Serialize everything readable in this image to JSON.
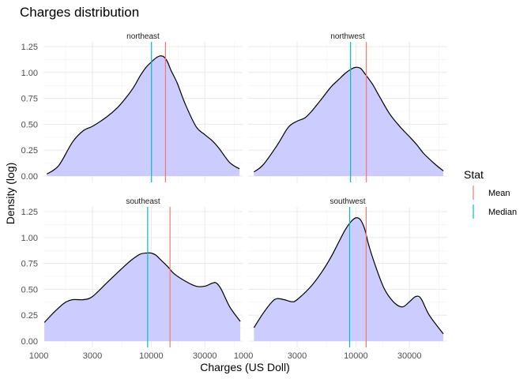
{
  "chart_data": {
    "type": "area",
    "title": "Charges distribution",
    "xlabel": "Charges (US Doll)",
    "ylabel": "Density (log)",
    "x_scale": "log10",
    "xlim": [
      1100,
      65000
    ],
    "ylim": [
      0,
      1.25
    ],
    "x_ticks": [
      1000,
      3000,
      10000,
      30000
    ],
    "x_tick_labels": [
      "1000",
      "3000",
      "10000",
      "30000"
    ],
    "y_ticks": [
      0,
      0.25,
      0.5,
      0.75,
      1.0,
      1.25
    ],
    "y_tick_labels": [
      "0.00",
      "0.25",
      "0.50",
      "0.75",
      "1.00",
      "1.25"
    ],
    "grid": true,
    "fill_color": "#ccccff",
    "line_color": "#000000",
    "legend": {
      "title": "Stat",
      "position": "right",
      "entries": [
        {
          "label": "Mean",
          "color": "#f8766d"
        },
        {
          "label": "Median",
          "color": "#00bfc4"
        }
      ]
    },
    "facets": [
      {
        "name": "northeast",
        "mean": 13400,
        "median": 10060,
        "density": [
          [
            1180,
            0.02
          ],
          [
            1500,
            0.1
          ],
          [
            2000,
            0.33
          ],
          [
            2500,
            0.44
          ],
          [
            3000,
            0.48
          ],
          [
            4000,
            0.57
          ],
          [
            5000,
            0.66
          ],
          [
            6000,
            0.76
          ],
          [
            7000,
            0.86
          ],
          [
            8000,
            0.97
          ],
          [
            9000,
            1.05
          ],
          [
            10000,
            1.1
          ],
          [
            11000,
            1.14
          ],
          [
            12000,
            1.16
          ],
          [
            13000,
            1.15
          ],
          [
            14000,
            1.1
          ],
          [
            15000,
            1.02
          ],
          [
            17000,
            0.9
          ],
          [
            20000,
            0.7
          ],
          [
            25000,
            0.48
          ],
          [
            30000,
            0.4
          ],
          [
            35000,
            0.34
          ],
          [
            40000,
            0.27
          ],
          [
            50000,
            0.13
          ],
          [
            61000,
            0.07
          ]
        ]
      },
      {
        "name": "northwest",
        "mean": 12400,
        "median": 8970,
        "density": [
          [
            1240,
            0.04
          ],
          [
            1500,
            0.11
          ],
          [
            2000,
            0.3
          ],
          [
            2500,
            0.47
          ],
          [
            3000,
            0.53
          ],
          [
            3500,
            0.56
          ],
          [
            4000,
            0.62
          ],
          [
            5000,
            0.75
          ],
          [
            6000,
            0.86
          ],
          [
            7000,
            0.93
          ],
          [
            8000,
            0.99
          ],
          [
            9000,
            1.03
          ],
          [
            10000,
            1.05
          ],
          [
            11000,
            1.04
          ],
          [
            12000,
            0.99
          ],
          [
            14000,
            0.89
          ],
          [
            16000,
            0.78
          ],
          [
            20000,
            0.6
          ],
          [
            25000,
            0.47
          ],
          [
            30000,
            0.38
          ],
          [
            35000,
            0.3
          ],
          [
            40000,
            0.22
          ],
          [
            50000,
            0.12
          ],
          [
            60000,
            0.05
          ]
        ]
      },
      {
        "name": "southeast",
        "mean": 14700,
        "median": 9300,
        "density": [
          [
            1120,
            0.18
          ],
          [
            1400,
            0.29
          ],
          [
            1700,
            0.37
          ],
          [
            2000,
            0.4
          ],
          [
            2500,
            0.4
          ],
          [
            3000,
            0.43
          ],
          [
            4000,
            0.56
          ],
          [
            5000,
            0.66
          ],
          [
            6000,
            0.74
          ],
          [
            7000,
            0.8
          ],
          [
            8000,
            0.84
          ],
          [
            9000,
            0.85
          ],
          [
            10000,
            0.85
          ],
          [
            11000,
            0.83
          ],
          [
            12000,
            0.79
          ],
          [
            14000,
            0.72
          ],
          [
            16000,
            0.65
          ],
          [
            20000,
            0.58
          ],
          [
            25000,
            0.53
          ],
          [
            30000,
            0.53
          ],
          [
            35000,
            0.56
          ],
          [
            38000,
            0.56
          ],
          [
            42000,
            0.5
          ],
          [
            50000,
            0.33
          ],
          [
            62000,
            0.19
          ]
        ]
      },
      {
        "name": "southwest",
        "mean": 12350,
        "median": 8800,
        "density": [
          [
            1240,
            0.13
          ],
          [
            1500,
            0.27
          ],
          [
            1800,
            0.38
          ],
          [
            2000,
            0.41
          ],
          [
            2300,
            0.4
          ],
          [
            2700,
            0.38
          ],
          [
            3000,
            0.4
          ],
          [
            4000,
            0.53
          ],
          [
            5000,
            0.67
          ],
          [
            6000,
            0.81
          ],
          [
            7000,
            0.95
          ],
          [
            8000,
            1.07
          ],
          [
            9000,
            1.15
          ],
          [
            10000,
            1.19
          ],
          [
            11000,
            1.17
          ],
          [
            12000,
            1.08
          ],
          [
            13000,
            0.93
          ],
          [
            15000,
            0.72
          ],
          [
            18000,
            0.5
          ],
          [
            22000,
            0.37
          ],
          [
            26000,
            0.33
          ],
          [
            30000,
            0.38
          ],
          [
            34000,
            0.43
          ],
          [
            38000,
            0.41
          ],
          [
            45000,
            0.25
          ],
          [
            60000,
            0.07
          ]
        ]
      }
    ]
  }
}
